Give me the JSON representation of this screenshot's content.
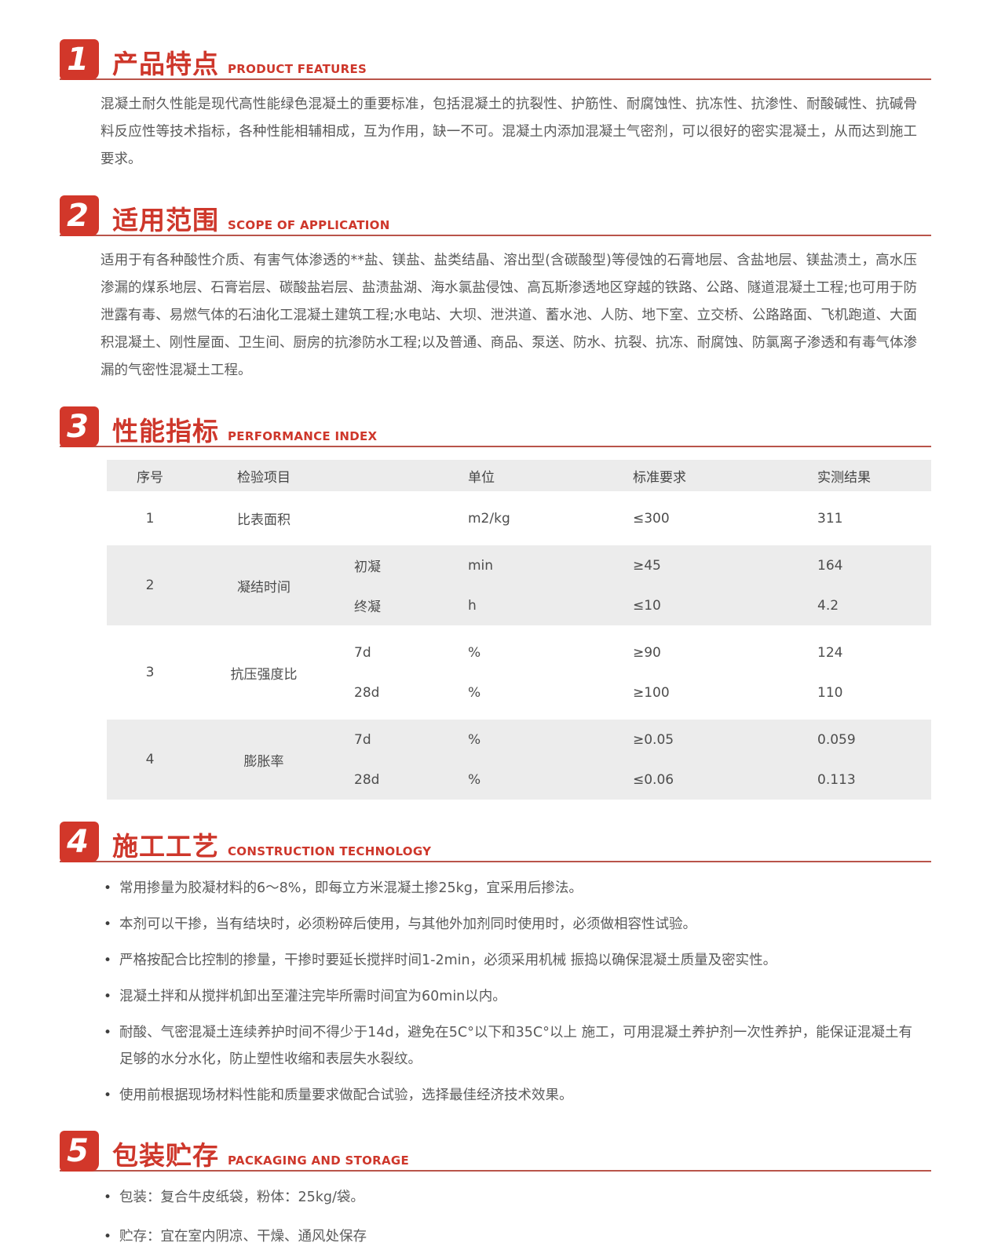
{
  "colors": {
    "accent": "#ce372b",
    "badge": "#d2372a",
    "underline": "#b9544a",
    "body_text": "#5a5a5a",
    "table_stripe": "#ececec"
  },
  "sections": [
    {
      "num": "1",
      "title_zh": "产品特点",
      "title_en": "PRODUCT FEATURES",
      "body": "混凝土耐久性能是现代高性能绿色混凝土的重要标准，包括混凝土的抗裂性、护筋性、耐腐蚀性、抗冻性、抗渗性、耐酸碱性、抗碱骨料反应性等技术指标，各种性能相辅相成，互为作用，缺一不可。混凝土内添加混凝土气密剂，可以很好的密实混凝土，从而达到施工要求。"
    },
    {
      "num": "2",
      "title_zh": "适用范围",
      "title_en": "SCOPE OF APPLICATION",
      "body": "适用于有各种酸性介质、有害气体渗透的**盐、镁盐、盐类结晶、溶出型(含碳酸型)等侵蚀的石膏地层、含盐地层、镁盐渍土，高水压渗漏的煤系地层、石膏岩层、碳酸盐岩层、盐渍盐湖、海水氯盐侵蚀、高瓦斯渗透地区穿越的铁路、公路、隧道混凝土工程;也可用于防泄露有毒、易燃气体的石油化工混凝土建筑工程;水电站、大坝、泄洪道、蓄水池、人防、地下室、立交桥、公路路面、飞机跑道、大面积混凝土、刚性屋面、卫生间、厨房的抗渗防水工程;以及普通、商品、泵送、防水、抗裂、抗冻、耐腐蚀、防氯离子渗透和有毒气体渗漏的气密性混凝土工程。"
    },
    {
      "num": "3",
      "title_zh": "性能指标",
      "title_en": "PERFORMANCE INDEX",
      "table": {
        "headers": {
          "no": "序号",
          "item": "检验项目",
          "sub": "",
          "unit": "单位",
          "req": "标准要求",
          "result": "实测结果"
        },
        "rows": [
          {
            "no": "1",
            "item": "比表面积",
            "subrows": [
              {
                "sub": "",
                "unit": "m2/kg",
                "req": "≤300",
                "result": "311"
              }
            ]
          },
          {
            "no": "2",
            "item": "凝结时间",
            "subrows": [
              {
                "sub": "初凝",
                "unit": "min",
                "req": "≥45",
                "result": "164"
              },
              {
                "sub": "终凝",
                "unit": "h",
                "req": "≤10",
                "result": "4.2"
              }
            ]
          },
          {
            "no": "3",
            "item": "抗压强度比",
            "subrows": [
              {
                "sub": "7d",
                "unit": "%",
                "req": "≥90",
                "result": "124"
              },
              {
                "sub": "28d",
                "unit": "%",
                "req": "≥100",
                "result": "110"
              }
            ]
          },
          {
            "no": "4",
            "item": "膨胀率",
            "subrows": [
              {
                "sub": "7d",
                "unit": "%",
                "req": "≥0.05",
                "result": "0.059"
              },
              {
                "sub": "28d",
                "unit": "%",
                "req": "≤0.06",
                "result": "0.113"
              }
            ]
          }
        ]
      }
    },
    {
      "num": "4",
      "title_zh": "施工工艺",
      "title_en": "CONSTRUCTION TECHNOLOGY",
      "bullets": [
        "常用掺量为胶凝材料的6～8%，即每立方米混凝土掺25kg，宜采用后掺法。",
        "本剂可以干掺，当有结块时，必须粉碎后使用，与其他外加剂同时使用时，必须做相容性试验。",
        "严格按配合比控制的掺量，干掺时要延长搅拌时间1-2min，必须采用机械 振捣以确保混凝土质量及密实性。",
        "混凝土拌和从搅拌机卸出至灌注完毕所需时间宜为60min以内。",
        "耐酸、气密混凝土连续养护时间不得少于14d，避免在5C°以下和35C°以上 施工，可用混凝土养护剂一次性养护，能保证混凝土有足够的水分水化，防止塑性收缩和表层失水裂纹。",
        "使用前根据现场材料性能和质量要求做配合试验，选择最佳经济技术效果。"
      ]
    },
    {
      "num": "5",
      "title_zh": "包装贮存",
      "title_en": "PACKAGING AND STORAGE",
      "bullets": [
        "包装：复合牛皮纸袋，粉体：25kg/袋。",
        "贮存：宜在室内阴凉、干燥、通风处保存"
      ]
    }
  ]
}
